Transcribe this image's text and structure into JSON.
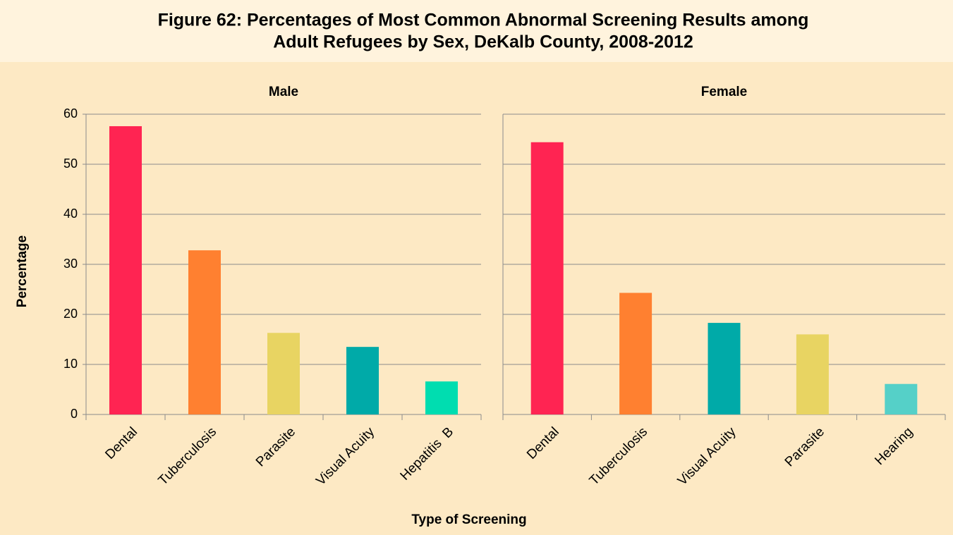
{
  "figure": {
    "title": [
      "Figure 62: Percentages of Most Common Abnormal Screening Results among",
      "Adult Refugees by Sex, DeKalb County, 2008-2012"
    ],
    "y_label": "Percentage",
    "x_label": "Type of Screening"
  },
  "chart_data": [
    {
      "type": "bar",
      "title": "Male",
      "categories": [
        "Dental",
        "Tuberculosis",
        "Parasite",
        "Visual Acuity",
        "Hepatitis  B"
      ],
      "values": [
        57.6,
        32.8,
        16.3,
        13.5,
        6.6
      ],
      "colors": [
        "#ff2452",
        "#ff8030",
        "#e8d462",
        "#00aaa8",
        "#00ddb0"
      ],
      "ylim": [
        0,
        60
      ],
      "yticks": [
        0,
        10,
        20,
        30,
        40,
        50,
        60
      ],
      "grid": true
    },
    {
      "type": "bar",
      "title": "Female",
      "categories": [
        "Dental",
        "Tuberculosis",
        "Visual Acuity",
        "Parasite",
        "Hearing"
      ],
      "values": [
        54.4,
        24.3,
        18.3,
        16.0,
        6.1
      ],
      "colors": [
        "#ff2452",
        "#ff8030",
        "#00aaa8",
        "#e8d462",
        "#55d0c8"
      ],
      "ylim": [
        0,
        60
      ],
      "yticks": [
        0,
        10,
        20,
        30,
        40,
        50,
        60
      ],
      "grid": true
    }
  ]
}
